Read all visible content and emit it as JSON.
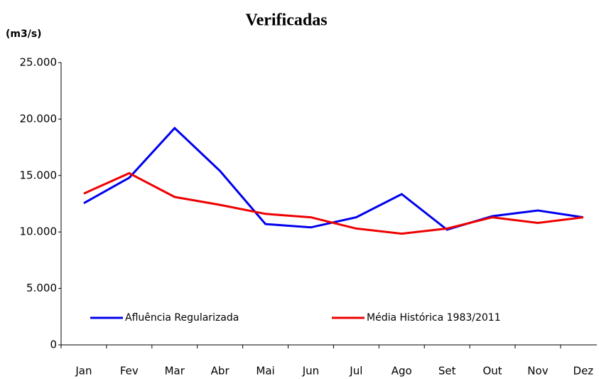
{
  "chart_data": {
    "type": "line",
    "title": "Verificadas",
    "y_label": "(m3/s)",
    "categories": [
      "Jan",
      "Fev",
      "Mar",
      "Abr",
      "Mai",
      "Jun",
      "Jul",
      "Ago",
      "Set",
      "Out",
      "Nov",
      "Dez"
    ],
    "series": [
      {
        "name": "Afluência Regularizada",
        "color": "#0000ee",
        "values": [
          12550,
          14800,
          19200,
          15400,
          10700,
          10400,
          11300,
          13350,
          10200,
          11400,
          11900,
          11300
        ]
      },
      {
        "name": "Média Histórica 1983/2011",
        "color": "#ee0000",
        "values": [
          13400,
          15200,
          13100,
          12400,
          11600,
          11300,
          10300,
          9850,
          10300,
          11300,
          10800,
          11300
        ]
      }
    ],
    "ylim": [
      0,
      25000
    ],
    "yticks": [
      0,
      {
        "value": 5000,
        "label": "5.000"
      },
      {
        "value": 10000,
        "label": "10.000"
      },
      {
        "value": 15000,
        "label": "15.000"
      },
      {
        "value": 20000,
        "label": "20.000"
      },
      {
        "value": 25000,
        "label": "25.000"
      }
    ],
    "grid": false,
    "legend": "bottom"
  }
}
